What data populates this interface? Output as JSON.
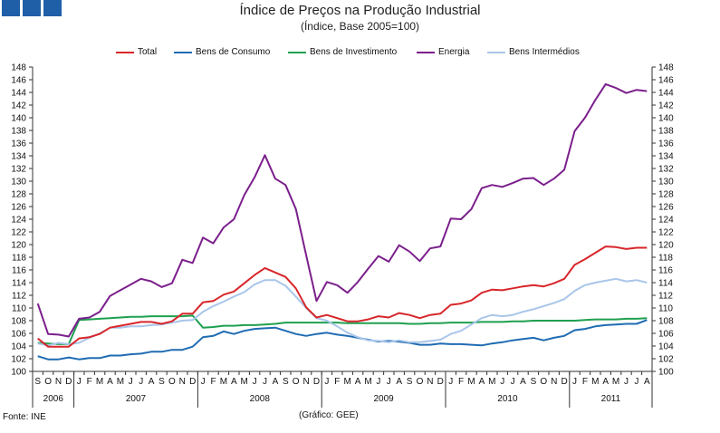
{
  "header": {
    "title": "Índice de Preços na Produção Industrial",
    "subtitle": "(Índice, Base 2005=100)"
  },
  "footer": {
    "source": "Fonte: INE",
    "credit": "(Gráfico: GEE)"
  },
  "colors": {
    "total": "#d8262a",
    "consumo": "#1f6cb3",
    "investimento": "#1fa04f",
    "energia": "#7b1f8c",
    "intermedios": "#a9c6ea",
    "header_squares": "#1f5fa8"
  },
  "chart_data": {
    "type": "line",
    "title": "Índice de Preços na Produção Industrial",
    "subtitle": "(Índice, Base 2005=100)",
    "ylim": [
      100,
      148
    ],
    "yticks": [
      100,
      102,
      104,
      106,
      108,
      110,
      112,
      114,
      116,
      118,
      120,
      122,
      124,
      126,
      128,
      130,
      132,
      134,
      136,
      138,
      140,
      142,
      144,
      146,
      148
    ],
    "axes": "left and right",
    "grid": false,
    "legend_position": "top",
    "month_labels": [
      "S",
      "O",
      "N",
      "D",
      "J",
      "F",
      "M",
      "A",
      "M",
      "J",
      "J",
      "A",
      "S",
      "O",
      "N",
      "D",
      "J",
      "F",
      "M",
      "A",
      "M",
      "J",
      "J",
      "A",
      "S",
      "O",
      "N",
      "D",
      "J",
      "F",
      "M",
      "A",
      "M",
      "J",
      "J",
      "A",
      "S",
      "O",
      "N",
      "D",
      "J",
      "F",
      "M",
      "A",
      "M",
      "J",
      "J",
      "A",
      "S",
      "O",
      "N",
      "D",
      "J",
      "F",
      "M",
      "A",
      "M",
      "J",
      "J",
      "A"
    ],
    "years": [
      {
        "label": "2006",
        "start": 0,
        "end": 3
      },
      {
        "label": "2007",
        "start": 4,
        "end": 15
      },
      {
        "label": "2008",
        "start": 16,
        "end": 27
      },
      {
        "label": "2009",
        "start": 28,
        "end": 39
      },
      {
        "label": "2010",
        "start": 40,
        "end": 51
      },
      {
        "label": "2011",
        "start": 52,
        "end": 59
      }
    ],
    "series": [
      {
        "name": "Total",
        "key": "total",
        "values": [
          105.2,
          103.9,
          103.9,
          103.9,
          105.2,
          105.4,
          105.9,
          106.9,
          107.2,
          107.5,
          107.8,
          107.8,
          107.5,
          107.9,
          109.1,
          109.1,
          110.9,
          111.1,
          112.1,
          112.6,
          113.9,
          115.2,
          116.3,
          115.6,
          114.9,
          113.1,
          110.1,
          108.5,
          108.9,
          108.4,
          107.9,
          107.9,
          108.2,
          108.7,
          108.5,
          109.2,
          108.9,
          108.4,
          108.9,
          109.1,
          110.5,
          110.7,
          111.2,
          112.4,
          112.9,
          112.8,
          113.1,
          113.4,
          113.6,
          113.4,
          113.9,
          114.6,
          116.8,
          117.7,
          118.7,
          119.7,
          119.6,
          119.3,
          119.5,
          119.5
        ]
      },
      {
        "name": "Bens de Consumo",
        "key": "consumo",
        "values": [
          102.4,
          101.9,
          101.9,
          102.2,
          101.9,
          102.1,
          102.1,
          102.5,
          102.5,
          102.7,
          102.8,
          103.1,
          103.1,
          103.4,
          103.4,
          103.9,
          105.4,
          105.6,
          106.3,
          105.9,
          106.4,
          106.7,
          106.8,
          106.9,
          106.4,
          105.9,
          105.6,
          105.9,
          106.1,
          105.8,
          105.6,
          105.3,
          105.0,
          104.7,
          104.8,
          104.7,
          104.5,
          104.2,
          104.2,
          104.4,
          104.3,
          104.3,
          104.2,
          104.1,
          104.4,
          104.6,
          104.9,
          105.1,
          105.3,
          104.9,
          105.3,
          105.6,
          106.5,
          106.7,
          107.1,
          107.3,
          107.4,
          107.5,
          107.5,
          108.1
        ]
      },
      {
        "name": "Bens de Investimento",
        "key": "investimento",
        "values": [
          104.5,
          104.4,
          104.3,
          104.3,
          108.1,
          108.2,
          108.3,
          108.4,
          108.5,
          108.6,
          108.6,
          108.7,
          108.7,
          108.7,
          108.7,
          108.8,
          106.9,
          107.0,
          107.2,
          107.2,
          107.3,
          107.3,
          107.4,
          107.5,
          107.7,
          107.7,
          107.7,
          107.7,
          107.7,
          107.7,
          107.6,
          107.6,
          107.6,
          107.6,
          107.6,
          107.6,
          107.5,
          107.5,
          107.6,
          107.6,
          107.7,
          107.7,
          107.7,
          107.8,
          107.8,
          107.8,
          107.9,
          107.9,
          108.0,
          108.0,
          108.0,
          108.0,
          108.0,
          108.1,
          108.2,
          108.2,
          108.2,
          108.3,
          108.3,
          108.4
        ]
      },
      {
        "name": "Energia",
        "key": "energia",
        "values": [
          110.7,
          105.9,
          105.8,
          105.5,
          108.3,
          108.5,
          109.4,
          111.9,
          112.8,
          113.7,
          114.6,
          114.2,
          113.3,
          113.9,
          117.6,
          117.1,
          121.1,
          120.2,
          122.7,
          124.0,
          127.8,
          130.6,
          134.1,
          130.4,
          129.4,
          125.6,
          118.3,
          111.1,
          114.1,
          113.6,
          112.4,
          114.1,
          116.2,
          118.2,
          117.3,
          119.9,
          118.9,
          117.4,
          119.4,
          119.7,
          124.1,
          124.0,
          125.6,
          128.9,
          129.4,
          129.1,
          129.7,
          130.4,
          130.5,
          129.4,
          130.4,
          131.8,
          137.9,
          140.0,
          142.8,
          145.3,
          144.7,
          143.9,
          144.4,
          144.2
        ]
      },
      {
        "name": "Bens Intermédios",
        "key": "intermedios",
        "values": [
          104.4,
          104.1,
          104.5,
          104.3,
          104.5,
          105.3,
          106.0,
          106.9,
          106.9,
          107.1,
          107.1,
          107.3,
          107.4,
          107.7,
          108.0,
          108.1,
          109.4,
          110.3,
          111.0,
          111.8,
          112.5,
          113.7,
          114.4,
          114.4,
          113.5,
          111.8,
          110.0,
          108.4,
          108.0,
          107.1,
          106.1,
          105.4,
          104.9,
          104.8,
          104.6,
          104.9,
          104.6,
          104.6,
          104.8,
          105.0,
          105.9,
          106.4,
          107.4,
          108.4,
          108.9,
          108.7,
          108.9,
          109.4,
          109.8,
          110.3,
          110.8,
          111.4,
          112.7,
          113.6,
          114.0,
          114.3,
          114.6,
          114.2,
          114.4,
          114.0
        ]
      }
    ]
  }
}
